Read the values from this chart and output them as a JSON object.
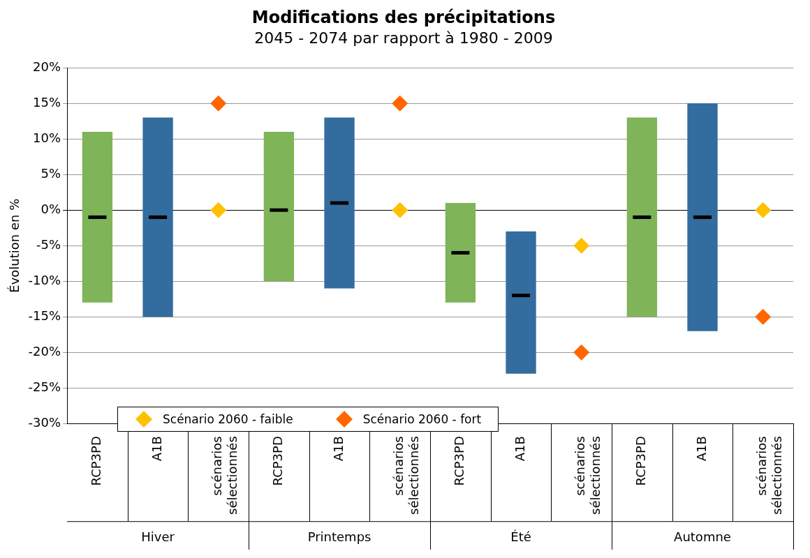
{
  "chart_data": {
    "type": "box",
    "title": "Modifications des précipitations",
    "subtitle": "2045 - 2074 par rapport à 1980 - 2009",
    "ylabel": "Évolution en %",
    "categories": [
      "RCP3PD",
      "A1B",
      "scénarios sélectionnés",
      "RCP3PD",
      "A1B",
      "scénarios sélectionnés",
      "RCP3PD",
      "A1B",
      "scénarios sélectionnés",
      "RCP3PD",
      "A1B",
      "scénarios sélectionnés"
    ],
    "annotations": [
      "Hiver",
      "Printemps",
      "Été",
      "Automne"
    ],
    "series": [
      {
        "colors": [
          "#7fb459",
          "#336c9f",
          null,
          "#7fb459",
          "#336c9f",
          null,
          "#7fb459",
          "#336c9f",
          null,
          "#7fb459",
          "#336c9f",
          null
        ],
        "boxes": [
          {
            "low": -13,
            "q1": -13,
            "median": -1,
            "q3": 11,
            "high": 11
          },
          {
            "low": -15,
            "q1": -15,
            "median": -1,
            "q3": 13,
            "high": 13
          },
          null,
          {
            "low": -10,
            "q1": -10,
            "median": 0,
            "q3": 11,
            "high": 11
          },
          {
            "low": -11,
            "q1": -11,
            "median": 1,
            "q3": 13,
            "high": 13
          },
          null,
          {
            "low": -13,
            "q1": -13,
            "median": -6,
            "q3": 1,
            "high": 1
          },
          {
            "low": -23,
            "q1": -23,
            "median": -12,
            "q3": -3,
            "high": -3
          },
          null,
          {
            "low": -15,
            "q1": -15,
            "median": -1,
            "q3": 13,
            "high": 13
          },
          {
            "low": -17,
            "q1": -17,
            "median": -1,
            "q3": 15,
            "high": 15
          },
          null
        ]
      },
      {
        "type": "scatter",
        "name": "Scénario 2060 - faible",
        "marker": "diamond",
        "color": "#ffc000",
        "values": [
          null,
          null,
          0,
          null,
          null,
          0,
          null,
          null,
          -5,
          null,
          null,
          0
        ]
      },
      {
        "type": "scatter",
        "name": "Scénario 2060 - fort",
        "marker": "diamond",
        "color": "#ff6600",
        "values": [
          null,
          null,
          15,
          null,
          null,
          15,
          null,
          null,
          -20,
          null,
          null,
          -15
        ]
      }
    ],
    "ylim": [
      -30,
      20
    ],
    "yticks": [
      {
        "value": -30,
        "label": "-30%"
      },
      {
        "value": -25,
        "label": "-25%"
      },
      {
        "value": -20,
        "label": "-20%"
      },
      {
        "value": -15,
        "label": "-15%"
      },
      {
        "value": -10,
        "label": "-10%"
      },
      {
        "value": -5,
        "label": "-5%"
      },
      {
        "value": 0,
        "label": "0%"
      },
      {
        "value": 5,
        "label": "5%"
      },
      {
        "value": 10,
        "label": "10%"
      },
      {
        "value": 15,
        "label": "15%"
      },
      {
        "value": 20,
        "label": "20%"
      }
    ],
    "grid": "y",
    "legend": "bottom left"
  }
}
